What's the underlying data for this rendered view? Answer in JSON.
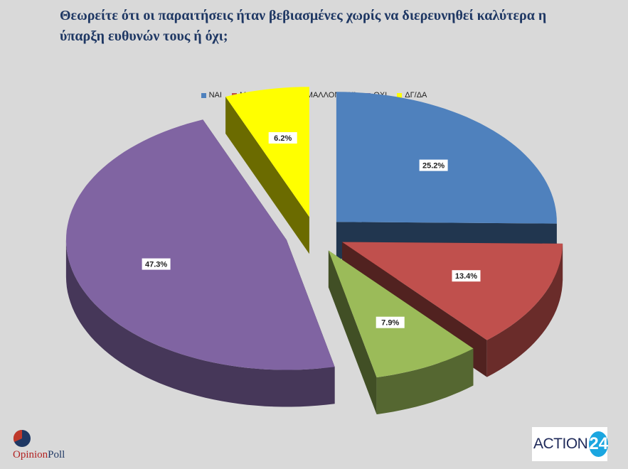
{
  "title": "Θεωρείτε ότι οι παραιτήσεις ήταν βεβιασμένες χωρίς να διερευνηθεί καλύτερα η ύπαρξη ευθυνών τους ή όχι;",
  "chart_data": {
    "type": "pie",
    "title": "Θεωρείτε ότι οι παραιτήσεις ήταν βεβιασμένες χωρίς να διερευνηθεί καλύτερα η ύπαρξη ευθυνών τους ή όχι;",
    "categories": [
      "ΝΑΙ",
      "ΜΑΛΛΟΝ ΝΑΙ",
      "ΜΑΛΛΟΝ ΟΧΙ",
      "ΟΧΙ",
      "ΔΓ/ΔΑ"
    ],
    "values": [
      25.2,
      13.4,
      7.9,
      47.3,
      6.2
    ],
    "labels": [
      "25.2%",
      "13.4%",
      "7.9%",
      "47.3%",
      "6.2%"
    ],
    "colors": [
      "#4f81bd",
      "#c0504d",
      "#9bbb59",
      "#8064a2",
      "#ffff00"
    ],
    "legend_position": "top",
    "style": "3d-exploded"
  },
  "logos": {
    "opinionpoll_a": "Opinion",
    "opinionpoll_b": "Poll",
    "action_text": "ACTION",
    "action_num": "24"
  }
}
